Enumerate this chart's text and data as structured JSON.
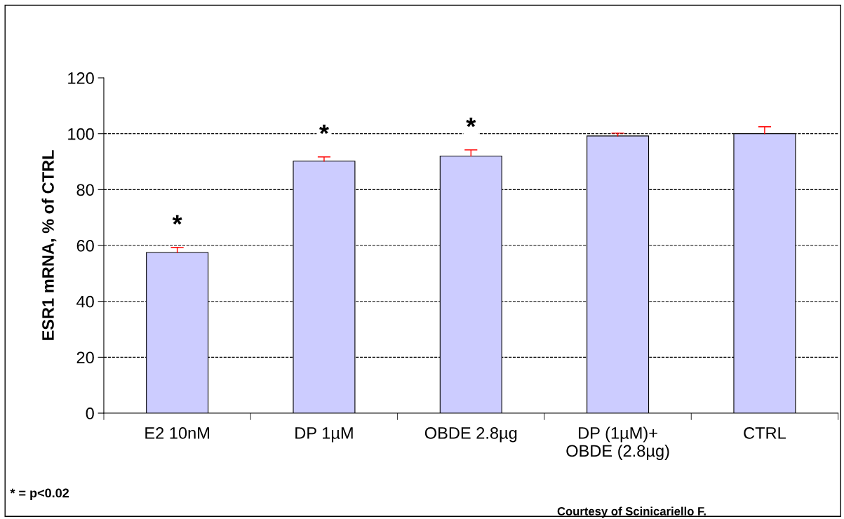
{
  "chart_data": {
    "type": "bar",
    "categories": [
      "E2 10nM",
      "DP 1µM",
      "OBDE 2.8µg",
      "DP (1µM)+\nOBDE (2.8µg)",
      "CTRL"
    ],
    "values": [
      57.5,
      90.2,
      92,
      99.2,
      100
    ],
    "errors": [
      [
        57.5,
        59.3
      ],
      [
        90.2,
        91.7
      ],
      [
        92,
        94.2
      ],
      [
        99.2,
        100.2
      ],
      [
        100,
        102.5
      ]
    ],
    "color": "#ccccff",
    "ylabel": "ESR1 mRNA, % of CTRL",
    "ylim": [
      0,
      120
    ],
    "yticks": [
      0,
      20,
      40,
      60,
      80,
      100,
      120
    ],
    "grid": "y",
    "line_style": "dashed",
    "annotations": [
      "*",
      "*",
      "*",
      "* = p<0.02",
      "Courtesy of Scinicariello F."
    ]
  }
}
